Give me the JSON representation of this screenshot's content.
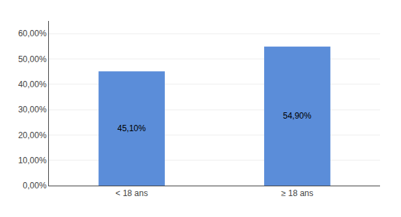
{
  "chart_data": {
    "type": "bar",
    "categories": [
      "< 18 ans",
      "≥ 18 ans"
    ],
    "values": [
      45.1,
      54.9
    ],
    "value_labels": [
      "45,10%",
      "54,90%"
    ],
    "color": "#5B8DD9",
    "ylim": [
      0,
      65
    ],
    "yticks": [
      {
        "value": 0,
        "label": "0,00%"
      },
      {
        "value": 10,
        "label": "10,00%"
      },
      {
        "value": 20,
        "label": "20,00%"
      },
      {
        "value": 30,
        "label": "30,00%"
      },
      {
        "value": 40,
        "label": "40,00%"
      },
      {
        "value": 50,
        "label": "50,00%"
      },
      {
        "value": 60,
        "label": "60,00%"
      }
    ],
    "grid": true
  }
}
